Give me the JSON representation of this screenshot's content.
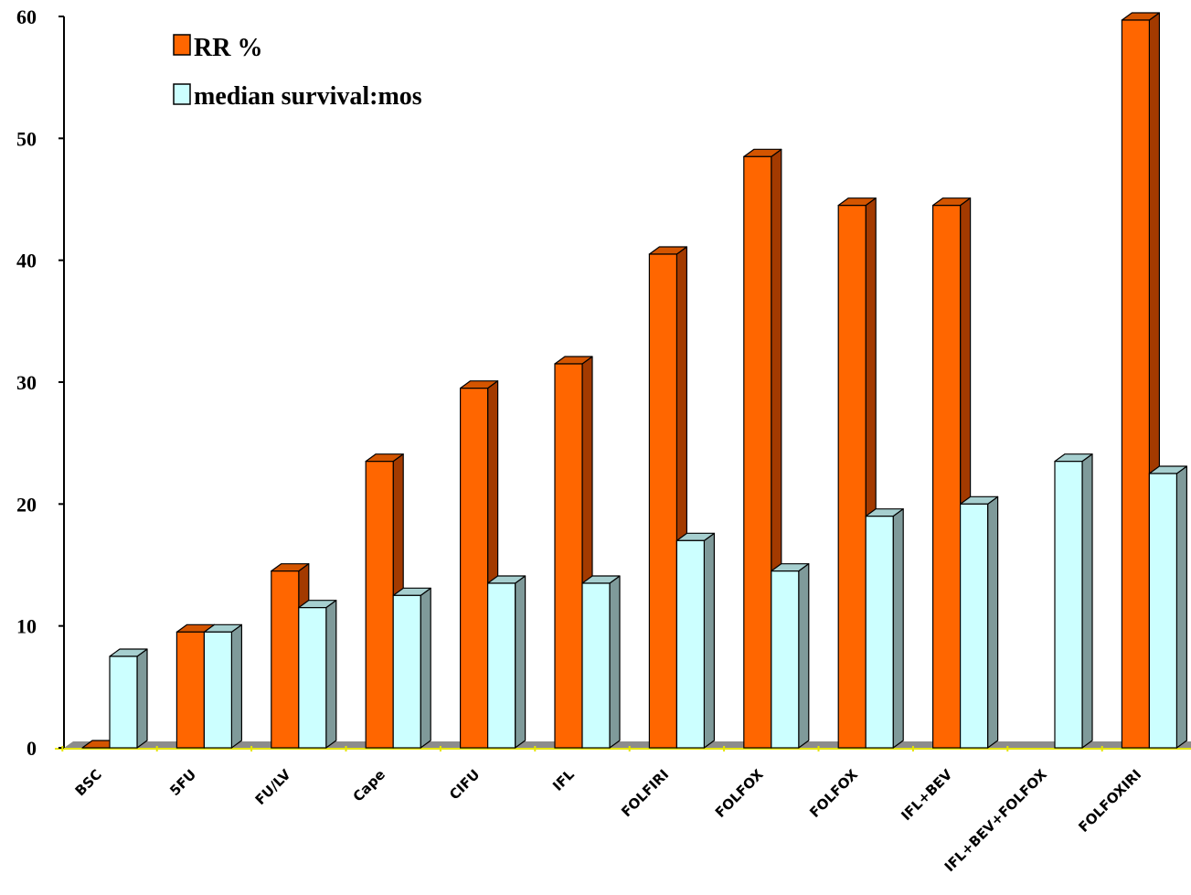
{
  "chart_data": {
    "type": "bar",
    "categories": [
      "BSC",
      "5FU",
      "FU/LV",
      "Cape",
      "CIFU",
      "IFL",
      "FOLFIRI",
      "FOLFOX",
      "FOLFOX",
      "IFL+BEV",
      "IFL+BEV+FOLFOX",
      "FOLFOXIRI"
    ],
    "series": [
      {
        "name": "RR %",
        "values": [
          0,
          9.5,
          14.5,
          23.5,
          29.5,
          31.5,
          40.5,
          48.5,
          44.5,
          44.5,
          null,
          59.7
        ]
      },
      {
        "name": "median survival:mos",
        "values": [
          7.5,
          9.5,
          11.5,
          12.5,
          13.5,
          13.5,
          17,
          14.5,
          19,
          20,
          23.5,
          22.5
        ]
      }
    ],
    "ylim": [
      0,
      60
    ],
    "yticks": [
      0,
      10,
      20,
      30,
      40,
      50,
      60
    ],
    "xlabel": "",
    "ylabel": "",
    "legend": "top-left",
    "grid": false,
    "colors": {
      "rr_front": "#FF6600",
      "rr_side": "#A33A00",
      "rr_top": "#D45500",
      "ms_front": "#CCFFFF",
      "ms_side": "#7F9A9A",
      "ms_top": "#A6CFCF",
      "floor": "#8C8C8C",
      "axis": "#000000",
      "tick_marker": "#E6E600"
    }
  }
}
